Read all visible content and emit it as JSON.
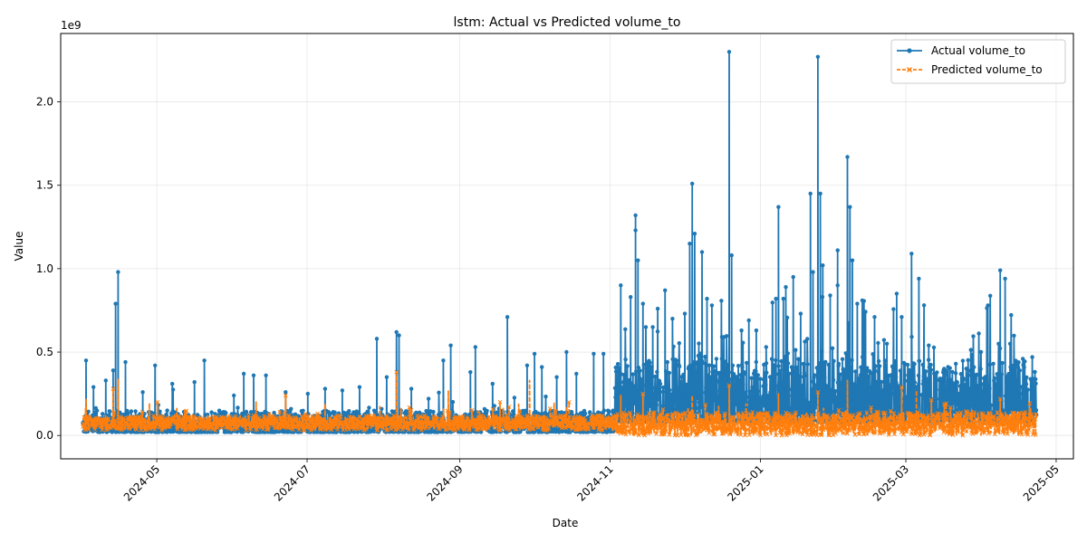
{
  "chart_data": {
    "type": "line",
    "title": "lstm: Actual vs Predicted volume_to",
    "xlabel": "Date",
    "ylabel": "Value",
    "y_offset_label": "1e9",
    "xlim": [
      "2024-03-23",
      "2025-05-08"
    ],
    "ylim": [
      -0.14,
      2.41
    ],
    "y_ticks": [
      0.0,
      0.5,
      1.0,
      1.5,
      2.0
    ],
    "y_tick_labels": [
      "0.0",
      "0.5",
      "1.0",
      "1.5",
      "2.0"
    ],
    "x_ticks": [
      "2024-05-01",
      "2024-07-01",
      "2024-09-01",
      "2024-11-01",
      "2025-01-01",
      "2025-03-01",
      "2025-05-01"
    ],
    "x_tick_labels": [
      "2024-05",
      "2024-07",
      "2024-09",
      "2024-11",
      "2025-01",
      "2025-03",
      "2025-05"
    ],
    "grid": true,
    "legend_position": "top-right",
    "series": [
      {
        "name": "Actual volume_to",
        "color": "#1f77b4",
        "marker": "circle",
        "line_style": "solid",
        "peaks": [
          [
            "2024-04-02",
            0.45
          ],
          [
            "2024-04-05",
            0.29
          ],
          [
            "2024-04-10",
            0.33
          ],
          [
            "2024-04-13",
            0.39
          ],
          [
            "2024-04-14",
            0.79
          ],
          [
            "2024-04-15",
            0.98
          ],
          [
            "2024-04-18",
            0.44
          ],
          [
            "2024-04-25",
            0.26
          ],
          [
            "2024-04-30",
            0.42
          ],
          [
            "2024-05-07",
            0.31
          ],
          [
            "2024-05-16",
            0.32
          ],
          [
            "2024-05-20",
            0.45
          ],
          [
            "2024-06-01",
            0.24
          ],
          [
            "2024-06-05",
            0.37
          ],
          [
            "2024-06-09",
            0.36
          ],
          [
            "2024-06-14",
            0.36
          ],
          [
            "2024-06-22",
            0.26
          ],
          [
            "2024-07-01",
            0.25
          ],
          [
            "2024-07-08",
            0.28
          ],
          [
            "2024-07-15",
            0.27
          ],
          [
            "2024-07-22",
            0.29
          ],
          [
            "2024-07-29",
            0.58
          ],
          [
            "2024-08-02",
            0.35
          ],
          [
            "2024-08-06",
            0.62
          ],
          [
            "2024-08-07",
            0.6
          ],
          [
            "2024-08-12",
            0.28
          ],
          [
            "2024-08-19",
            0.22
          ],
          [
            "2024-08-25",
            0.45
          ],
          [
            "2024-08-28",
            0.54
          ],
          [
            "2024-09-05",
            0.38
          ],
          [
            "2024-09-07",
            0.53
          ],
          [
            "2024-09-14",
            0.31
          ],
          [
            "2024-09-20",
            0.71
          ],
          [
            "2024-09-28",
            0.42
          ],
          [
            "2024-10-01",
            0.49
          ],
          [
            "2024-10-04",
            0.41
          ],
          [
            "2024-10-10",
            0.35
          ],
          [
            "2024-10-14",
            0.5
          ],
          [
            "2024-10-18",
            0.37
          ],
          [
            "2024-10-25",
            0.49
          ],
          [
            "2024-10-29",
            0.49
          ],
          [
            "2024-11-05",
            0.9
          ],
          [
            "2024-11-09",
            0.83
          ],
          [
            "2024-11-11",
            1.32
          ],
          [
            "2024-11-11",
            1.23
          ],
          [
            "2024-11-12",
            1.05
          ],
          [
            "2024-11-14",
            0.79
          ],
          [
            "2024-11-18",
            0.65
          ],
          [
            "2024-11-20",
            0.76
          ],
          [
            "2024-11-23",
            0.87
          ],
          [
            "2024-11-26",
            0.7
          ],
          [
            "2024-12-01",
            0.73
          ],
          [
            "2024-12-03",
            1.15
          ],
          [
            "2024-12-04",
            1.51
          ],
          [
            "2024-12-05",
            1.21
          ],
          [
            "2024-12-08",
            1.1
          ],
          [
            "2024-12-10",
            0.82
          ],
          [
            "2024-12-12",
            0.78
          ],
          [
            "2024-12-16",
            0.46
          ],
          [
            "2024-12-19",
            2.3
          ],
          [
            "2024-12-20",
            1.08
          ],
          [
            "2024-12-24",
            0.63
          ],
          [
            "2024-12-27",
            0.69
          ],
          [
            "2024-12-30",
            0.63
          ],
          [
            "2025-01-03",
            0.53
          ],
          [
            "2025-01-07",
            0.82
          ],
          [
            "2025-01-08",
            1.37
          ],
          [
            "2025-01-10",
            0.82
          ],
          [
            "2025-01-11",
            0.89
          ],
          [
            "2025-01-14",
            0.95
          ],
          [
            "2025-01-17",
            0.73
          ],
          [
            "2025-01-21",
            1.45
          ],
          [
            "2025-01-22",
            0.98
          ],
          [
            "2025-01-24",
            2.27
          ],
          [
            "2025-01-25",
            1.45
          ],
          [
            "2025-01-26",
            1.02
          ],
          [
            "2025-01-29",
            0.84
          ],
          [
            "2025-02-01",
            1.11
          ],
          [
            "2025-02-01",
            0.9
          ],
          [
            "2025-02-05",
            1.67
          ],
          [
            "2025-02-06",
            1.37
          ],
          [
            "2025-02-07",
            1.05
          ],
          [
            "2025-02-09",
            0.79
          ],
          [
            "2025-02-11",
            0.81
          ],
          [
            "2025-02-16",
            0.71
          ],
          [
            "2025-02-21",
            0.55
          ],
          [
            "2025-02-25",
            0.85
          ],
          [
            "2025-02-27",
            0.71
          ],
          [
            "2025-03-03",
            1.09
          ],
          [
            "2025-03-06",
            0.94
          ],
          [
            "2025-03-10",
            0.54
          ],
          [
            "2025-03-16",
            0.39
          ],
          [
            "2025-03-21",
            0.43
          ],
          [
            "2025-03-27",
            0.39
          ],
          [
            "2025-04-03",
            0.78
          ],
          [
            "2025-04-08",
            0.99
          ],
          [
            "2025-04-10",
            0.94
          ],
          [
            "2025-04-12",
            0.55
          ],
          [
            "2025-04-21",
            0.47
          ]
        ]
      },
      {
        "name": "Predicted volume_to",
        "color": "#ff7f0e",
        "marker": "x",
        "line_style": "dashed",
        "peaks": [
          [
            "2024-04-02",
            0.22
          ],
          [
            "2024-04-13",
            0.28
          ],
          [
            "2024-04-15",
            0.34
          ],
          [
            "2024-05-01",
            0.2
          ],
          [
            "2024-06-10",
            0.2
          ],
          [
            "2024-06-22",
            0.24
          ],
          [
            "2024-07-08",
            0.19
          ],
          [
            "2024-08-06",
            0.38
          ],
          [
            "2024-08-27",
            0.27
          ],
          [
            "2024-09-17",
            0.2
          ],
          [
            "2024-09-29",
            0.33
          ],
          [
            "2024-10-15",
            0.2
          ],
          [
            "2024-11-05",
            0.24
          ],
          [
            "2024-11-14",
            0.25
          ],
          [
            "2024-12-04",
            0.24
          ],
          [
            "2024-12-19",
            0.3
          ],
          [
            "2025-01-08",
            0.25
          ],
          [
            "2025-01-24",
            0.26
          ],
          [
            "2025-02-05",
            0.33
          ],
          [
            "2025-02-27",
            0.29
          ],
          [
            "2025-03-05",
            0.27
          ],
          [
            "2025-04-08",
            0.22
          ],
          [
            "2025-04-21",
            0.13
          ]
        ]
      }
    ]
  }
}
